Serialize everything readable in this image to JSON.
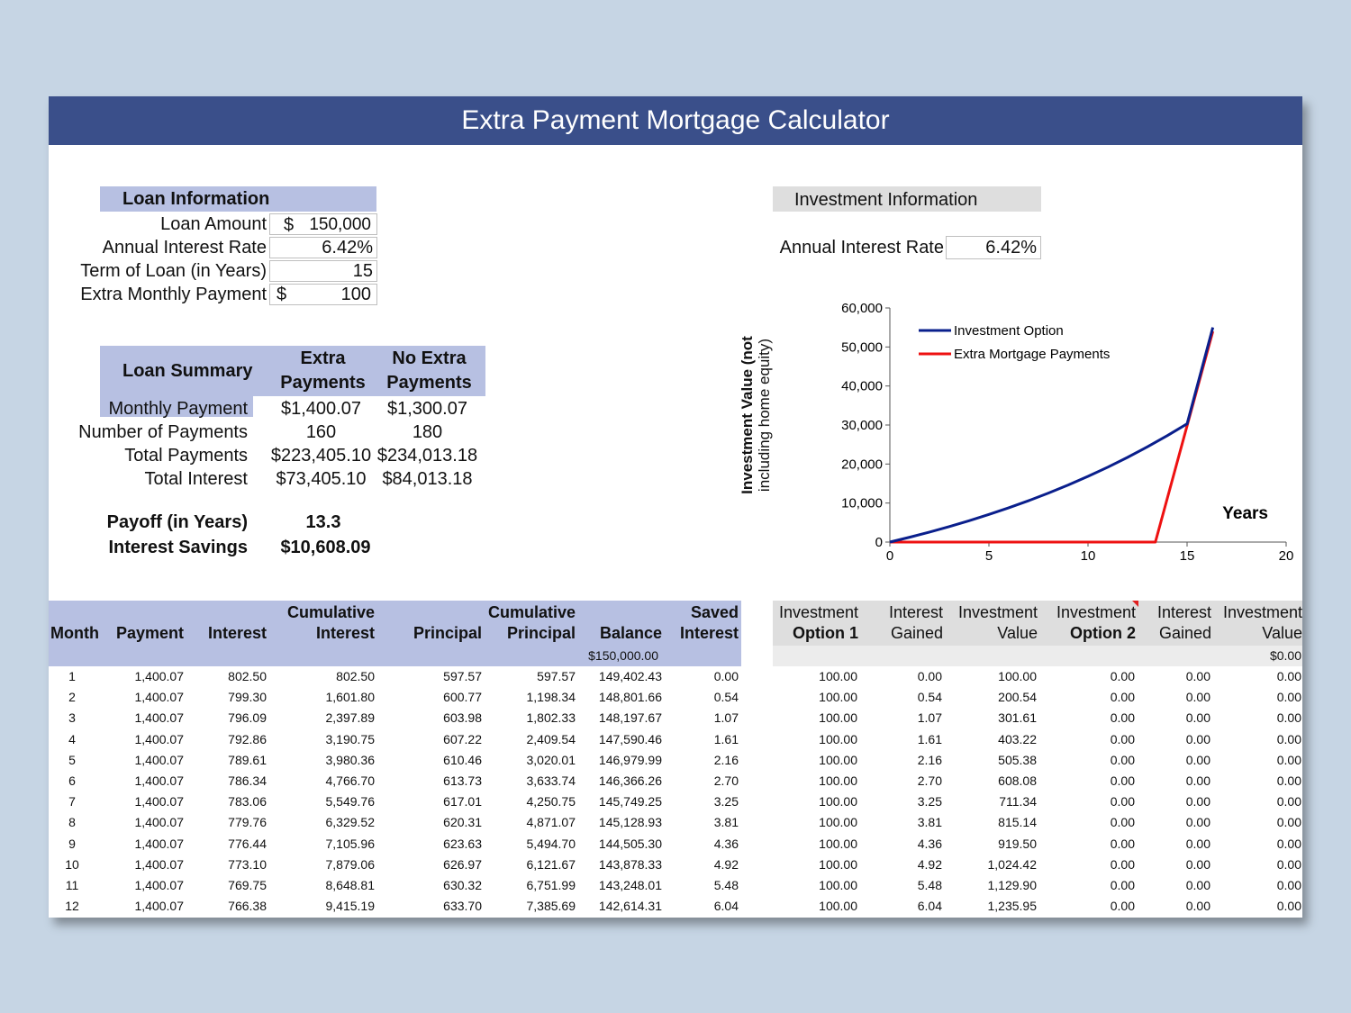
{
  "title": "Extra Payment Mortgage Calculator",
  "loan_info": {
    "header": "Loan Information",
    "rows": [
      {
        "label": "Loan Amount",
        "prefix": "$",
        "value": "150,000"
      },
      {
        "label": "Annual Interest Rate",
        "prefix": "",
        "value": "6.42%"
      },
      {
        "label": "Term of Loan (in Years)",
        "prefix": "",
        "value": "15"
      },
      {
        "label": "Extra Monthly Payment",
        "prefix": "$",
        "value": "100"
      }
    ]
  },
  "investment_info": {
    "header": "Investment Information",
    "rate_label": "Annual Interest Rate",
    "rate_value": "6.42%"
  },
  "loan_summary": {
    "header": "Loan Summary",
    "col1_line1": "Extra",
    "col1_line2": "Payments",
    "col2_line1": "No Extra",
    "col2_line2": "Payments",
    "rows": [
      {
        "label": "Monthly Payment",
        "extra": "$1,400.07",
        "no_extra": "$1,300.07"
      },
      {
        "label": "Number of Payments",
        "extra": "160",
        "no_extra": "180"
      },
      {
        "label": "Total Payments",
        "extra": "$223,405.10",
        "no_extra": "$234,013.18"
      },
      {
        "label": "Total Interest",
        "extra": "$73,405.10",
        "no_extra": "$84,013.18"
      }
    ],
    "payoff_label": "Payoff (in Years)",
    "payoff_value": "13.3",
    "savings_label": "Interest Savings",
    "savings_value": "$10,608.09"
  },
  "chart_data": {
    "type": "line",
    "ylabel_line1": "Investment Value (not",
    "ylabel_line2": "including home equity)",
    "xlabel": "Years",
    "xlim": [
      0,
      20
    ],
    "ylim": [
      0,
      60000
    ],
    "xticks": [
      "0",
      "5",
      "10",
      "15",
      "20"
    ],
    "yticks": [
      "0",
      "10,000",
      "20,000",
      "30,000",
      "40,000",
      "50,000",
      "60,000"
    ],
    "series": [
      {
        "name": "Investment Option",
        "color": "#0a1f8c",
        "x": [
          0,
          1,
          2,
          3,
          4,
          5,
          6,
          7,
          8,
          9,
          10,
          11,
          12,
          13,
          14,
          15,
          16.3
        ],
        "y": [
          0,
          1240,
          2560,
          3970,
          5470,
          7070,
          8780,
          10600,
          12550,
          14620,
          16840,
          19200,
          21720,
          24410,
          27280,
          30300,
          55000
        ]
      },
      {
        "name": "Extra Mortgage Payments",
        "color": "#ee1111",
        "x": [
          0,
          13.4,
          16.3
        ],
        "y": [
          0,
          0,
          54000
        ]
      }
    ]
  },
  "schedule": {
    "headers": [
      {
        "top": "",
        "bottom": "Month"
      },
      {
        "top": "",
        "bottom": "Payment"
      },
      {
        "top": "",
        "bottom": "Interest"
      },
      {
        "top": "Cumulative",
        "bottom": "Interest"
      },
      {
        "top": "",
        "bottom": "Principal"
      },
      {
        "top": "Cumulative",
        "bottom": "Principal"
      },
      {
        "top": "",
        "bottom": "Balance"
      },
      {
        "top": "Saved",
        "bottom": "Interest"
      }
    ],
    "initial_balance": "$150,000.00",
    "rows": [
      [
        "1",
        "1,400.07",
        "802.50",
        "802.50",
        "597.57",
        "597.57",
        "149,402.43",
        "0.00"
      ],
      [
        "2",
        "1,400.07",
        "799.30",
        "1,601.80",
        "600.77",
        "1,198.34",
        "148,801.66",
        "0.54"
      ],
      [
        "3",
        "1,400.07",
        "796.09",
        "2,397.89",
        "603.98",
        "1,802.33",
        "148,197.67",
        "1.07"
      ],
      [
        "4",
        "1,400.07",
        "792.86",
        "3,190.75",
        "607.22",
        "2,409.54",
        "147,590.46",
        "1.61"
      ],
      [
        "5",
        "1,400.07",
        "789.61",
        "3,980.36",
        "610.46",
        "3,020.01",
        "146,979.99",
        "2.16"
      ],
      [
        "6",
        "1,400.07",
        "786.34",
        "4,766.70",
        "613.73",
        "3,633.74",
        "146,366.26",
        "2.70"
      ],
      [
        "7",
        "1,400.07",
        "783.06",
        "5,549.76",
        "617.01",
        "4,250.75",
        "145,749.25",
        "3.25"
      ],
      [
        "8",
        "1,400.07",
        "779.76",
        "6,329.52",
        "620.31",
        "4,871.07",
        "145,128.93",
        "3.81"
      ],
      [
        "9",
        "1,400.07",
        "776.44",
        "7,105.96",
        "623.63",
        "5,494.70",
        "144,505.30",
        "4.36"
      ],
      [
        "10",
        "1,400.07",
        "773.10",
        "7,879.06",
        "626.97",
        "6,121.67",
        "143,878.33",
        "4.92"
      ],
      [
        "11",
        "1,400.07",
        "769.75",
        "8,648.81",
        "630.32",
        "6,751.99",
        "143,248.01",
        "5.48"
      ],
      [
        "12",
        "1,400.07",
        "766.38",
        "9,415.19",
        "633.70",
        "7,385.69",
        "142,614.31",
        "6.04"
      ]
    ]
  },
  "investment_table": {
    "headers": [
      {
        "top": "Investment",
        "bottom": "Option 1"
      },
      {
        "top": "Interest",
        "bottom": "Gained"
      },
      {
        "top": "Investment",
        "bottom": "Value"
      },
      {
        "top": "Investment",
        "bottom": "Option 2"
      },
      {
        "top": "Interest",
        "bottom": "Gained"
      },
      {
        "top": "Investment",
        "bottom": "Value"
      }
    ],
    "initial_value": "$0.00",
    "rows": [
      [
        "100.00",
        "0.00",
        "100.00",
        "0.00",
        "0.00",
        "0.00"
      ],
      [
        "100.00",
        "0.54",
        "200.54",
        "0.00",
        "0.00",
        "0.00"
      ],
      [
        "100.00",
        "1.07",
        "301.61",
        "0.00",
        "0.00",
        "0.00"
      ],
      [
        "100.00",
        "1.61",
        "403.22",
        "0.00",
        "0.00",
        "0.00"
      ],
      [
        "100.00",
        "2.16",
        "505.38",
        "0.00",
        "0.00",
        "0.00"
      ],
      [
        "100.00",
        "2.70",
        "608.08",
        "0.00",
        "0.00",
        "0.00"
      ],
      [
        "100.00",
        "3.25",
        "711.34",
        "0.00",
        "0.00",
        "0.00"
      ],
      [
        "100.00",
        "3.81",
        "815.14",
        "0.00",
        "0.00",
        "0.00"
      ],
      [
        "100.00",
        "4.36",
        "919.50",
        "0.00",
        "0.00",
        "0.00"
      ],
      [
        "100.00",
        "4.92",
        "1,024.42",
        "0.00",
        "0.00",
        "0.00"
      ],
      [
        "100.00",
        "5.48",
        "1,129.90",
        "0.00",
        "0.00",
        "0.00"
      ],
      [
        "100.00",
        "6.04",
        "1,235.95",
        "0.00",
        "0.00",
        "0.00"
      ]
    ]
  }
}
